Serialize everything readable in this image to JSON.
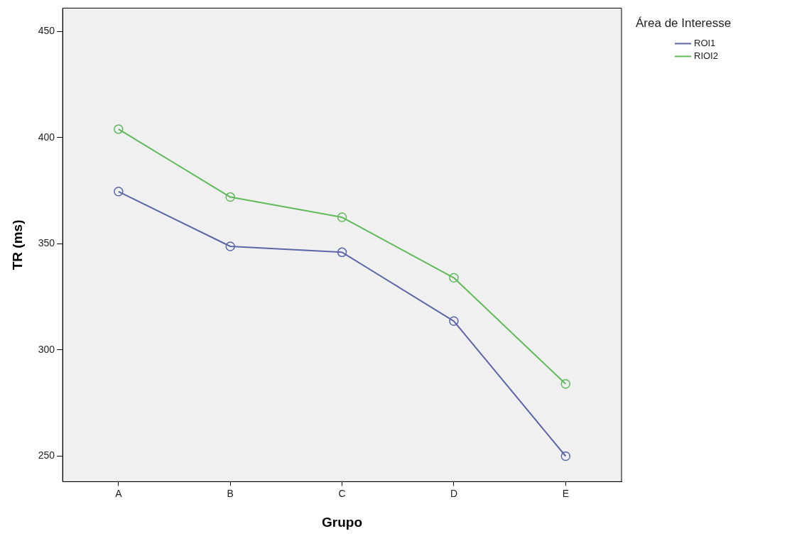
{
  "chart_data": {
    "type": "line",
    "xlabel": "Grupo",
    "ylabel": "TR (ms)",
    "legend_title": "Área de Interesse",
    "categories": [
      "A",
      "B",
      "C",
      "D",
      "E"
    ],
    "series": [
      {
        "name": "ROI1",
        "color": "#5a66a8",
        "values": [
          374.6,
          348.8,
          346,
          313.6,
          250
        ]
      },
      {
        "name": "RIOI2",
        "color": "#5fba5a",
        "values": [
          404,
          372,
          362.5,
          334,
          284
        ]
      }
    ],
    "ylim": [
      238,
      461
    ],
    "yticks": [
      250,
      300,
      350,
      400,
      450
    ],
    "grid": false,
    "legend": "right",
    "marker": "circle",
    "line_style": "solid"
  }
}
